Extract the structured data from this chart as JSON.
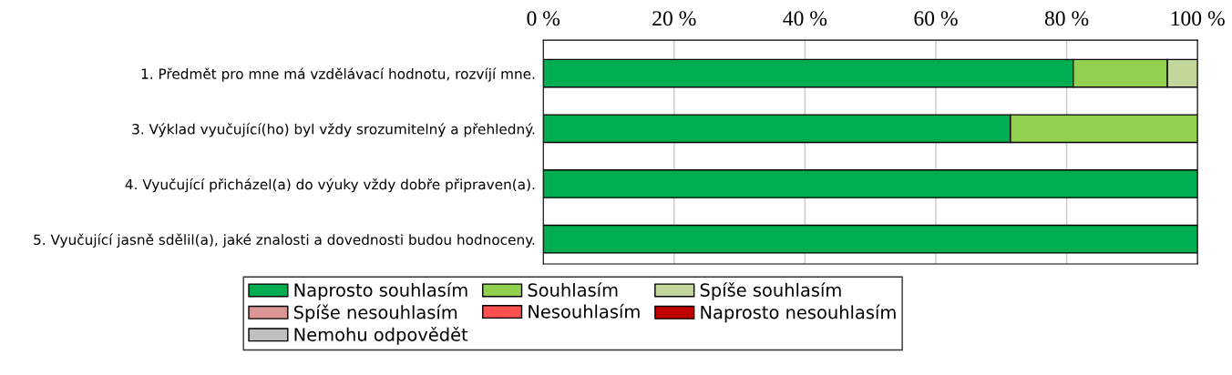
{
  "chart_data": {
    "type": "bar",
    "orientation": "horizontal",
    "stacked": true,
    "categories": [
      "1. Předmět pro mne má vzdělávací hodnotu, rozvíjí mne.",
      "3. Výklad vyučující(ho) byl vždy srozumitelný a přehledný.",
      "4. Vyučující přicházel(a) do výuky vždy dobře připraven(a).",
      "5. Vyučující jasně sdělil(a), jaké znalosti a dovednosti budou hodnoceny."
    ],
    "series": [
      {
        "name": "Naprosto souhlasím",
        "color": "#00ad50",
        "values": [
          81,
          71.4,
          100,
          100
        ]
      },
      {
        "name": "Souhlasím",
        "color": "#92d050",
        "values": [
          14.4,
          28.6,
          0,
          0
        ]
      },
      {
        "name": "Spíše souhlasím",
        "color": "#c4d79b",
        "values": [
          4.6,
          0,
          0,
          0
        ]
      },
      {
        "name": "Spíše nesouhlasím",
        "color": "#d99694",
        "values": [
          0,
          0,
          0,
          0
        ]
      },
      {
        "name": "Nesouhlasím",
        "color": "#ff5050",
        "values": [
          0,
          0,
          0,
          0
        ]
      },
      {
        "name": "Naprosto nesouhlasím",
        "color": "#c00000",
        "values": [
          0,
          0,
          0,
          0
        ]
      },
      {
        "name": "Nemohu odpovědět",
        "color": "#bfbfbf",
        "values": [
          0,
          0,
          0,
          0
        ]
      }
    ],
    "xlim": [
      0,
      100
    ],
    "xticks": [
      {
        "value": 0,
        "label": "0 %"
      },
      {
        "value": 20,
        "label": "20 %"
      },
      {
        "value": 40,
        "label": "40 %"
      },
      {
        "value": 60,
        "label": "60 %"
      },
      {
        "value": 80,
        "label": "80 %"
      },
      {
        "value": 100,
        "label": "100 %"
      }
    ],
    "grid": "x",
    "legend": "bottom"
  }
}
